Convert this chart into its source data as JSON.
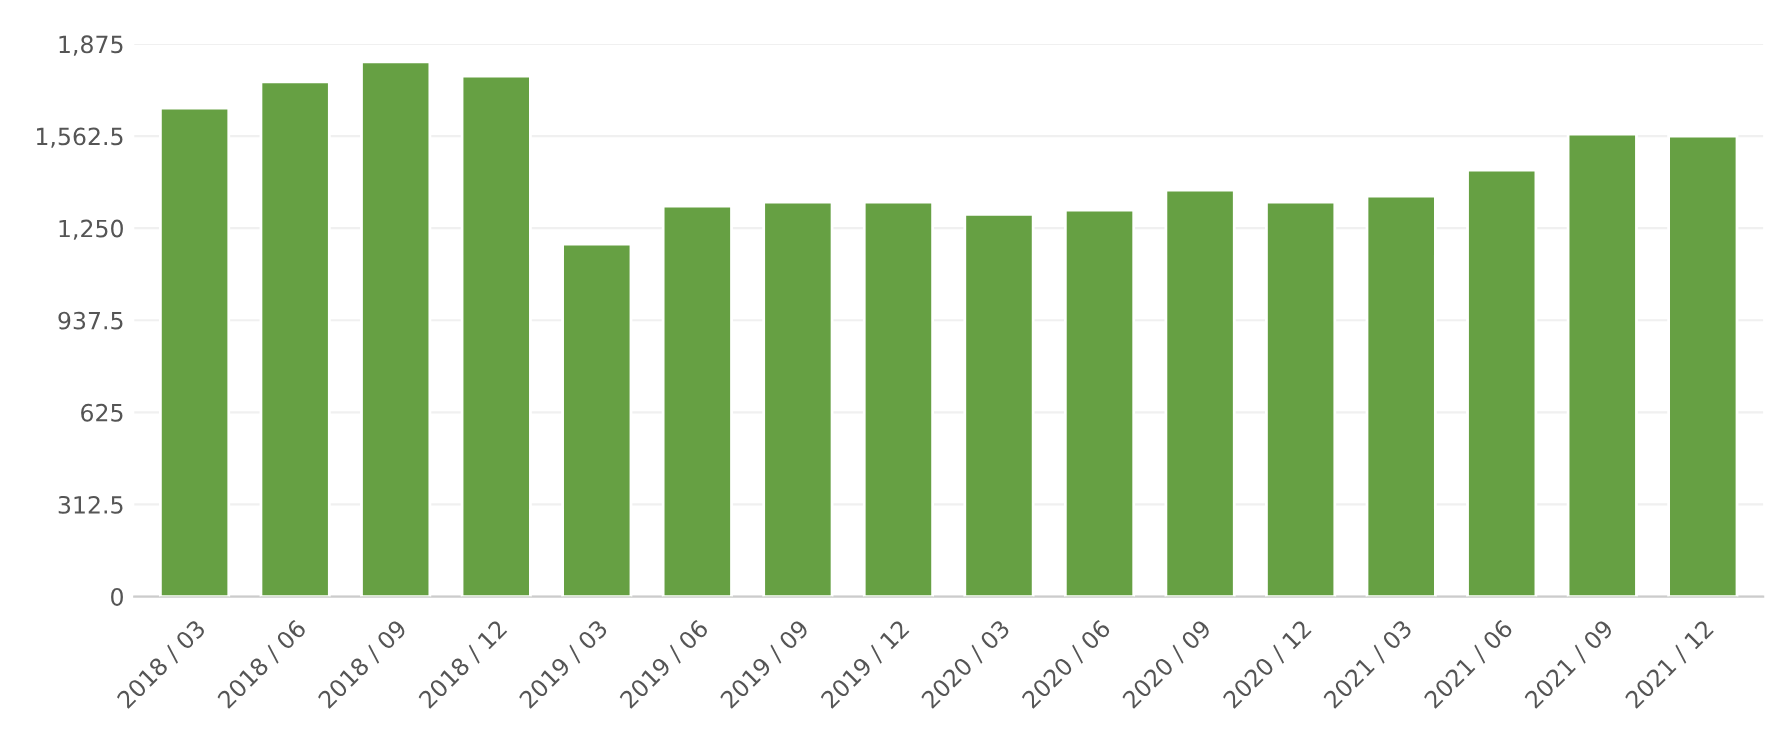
{
  "chart_data": {
    "type": "bar",
    "categories": [
      "2018 / 03",
      "2018 / 06",
      "2018 / 09",
      "2018 / 12",
      "2019 / 03",
      "2019 / 06",
      "2019 / 09",
      "2019 / 12",
      "2020 / 03",
      "2020 / 06",
      "2020 / 09",
      "2020 / 12",
      "2021 / 03",
      "2021 / 06",
      "2021 / 09",
      "2021 / 12"
    ],
    "values": [
      1657,
      1746,
      1814,
      1766,
      1196,
      1325,
      1338,
      1338,
      1297,
      1311,
      1379,
      1338,
      1359,
      1447,
      1569,
      1562
    ],
    "color": "#66a043",
    "ylim": [
      0,
      1875
    ],
    "yticks": [
      0,
      {
        "value": 312.5,
        "label": "312.5"
      },
      {
        "value": 625,
        "label": "625"
      },
      {
        "value": 937.5,
        "label": "937.5"
      },
      {
        "value": 1250,
        "label": "1,250"
      },
      {
        "value": 1562.5,
        "label": "1,562.5"
      },
      {
        "value": 1875,
        "label": "1,875"
      }
    ],
    "grid": "y"
  }
}
